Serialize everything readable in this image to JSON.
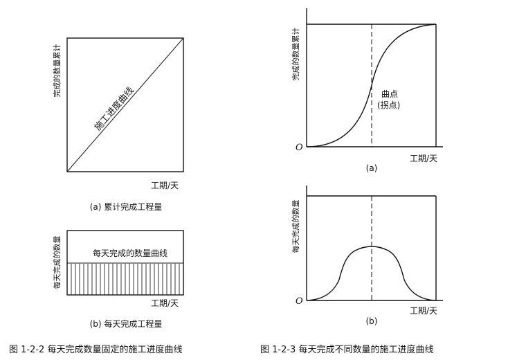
{
  "left": {
    "chart_a": {
      "ylabel": "完成的数量累计",
      "xlabel": "工期/天",
      "line_label": "施工进度曲线",
      "caption": "(a) 累计完成工程量"
    },
    "chart_b": {
      "ylabel": "每天完成的数量",
      "xlabel": "工期/天",
      "curve_label": "每天完成的数量曲线",
      "caption": "(b) 每天完成工程量"
    },
    "figure_caption": "图 1-2-2  每天完成数量固定的施工进度曲线"
  },
  "right": {
    "chart_a": {
      "ylabel": "完成的数量累计",
      "xlabel": "工期/天",
      "origin": "O",
      "annot_line1": "曲点",
      "annot_line2": "(拐点)",
      "caption": "(a)"
    },
    "chart_b": {
      "ylabel": "每天完成的数量",
      "xlabel": "工期/天",
      "origin": "O",
      "caption": "(b)"
    },
    "figure_caption": "图 1-2-3  每天完成不同数量的施工进度曲线"
  }
}
